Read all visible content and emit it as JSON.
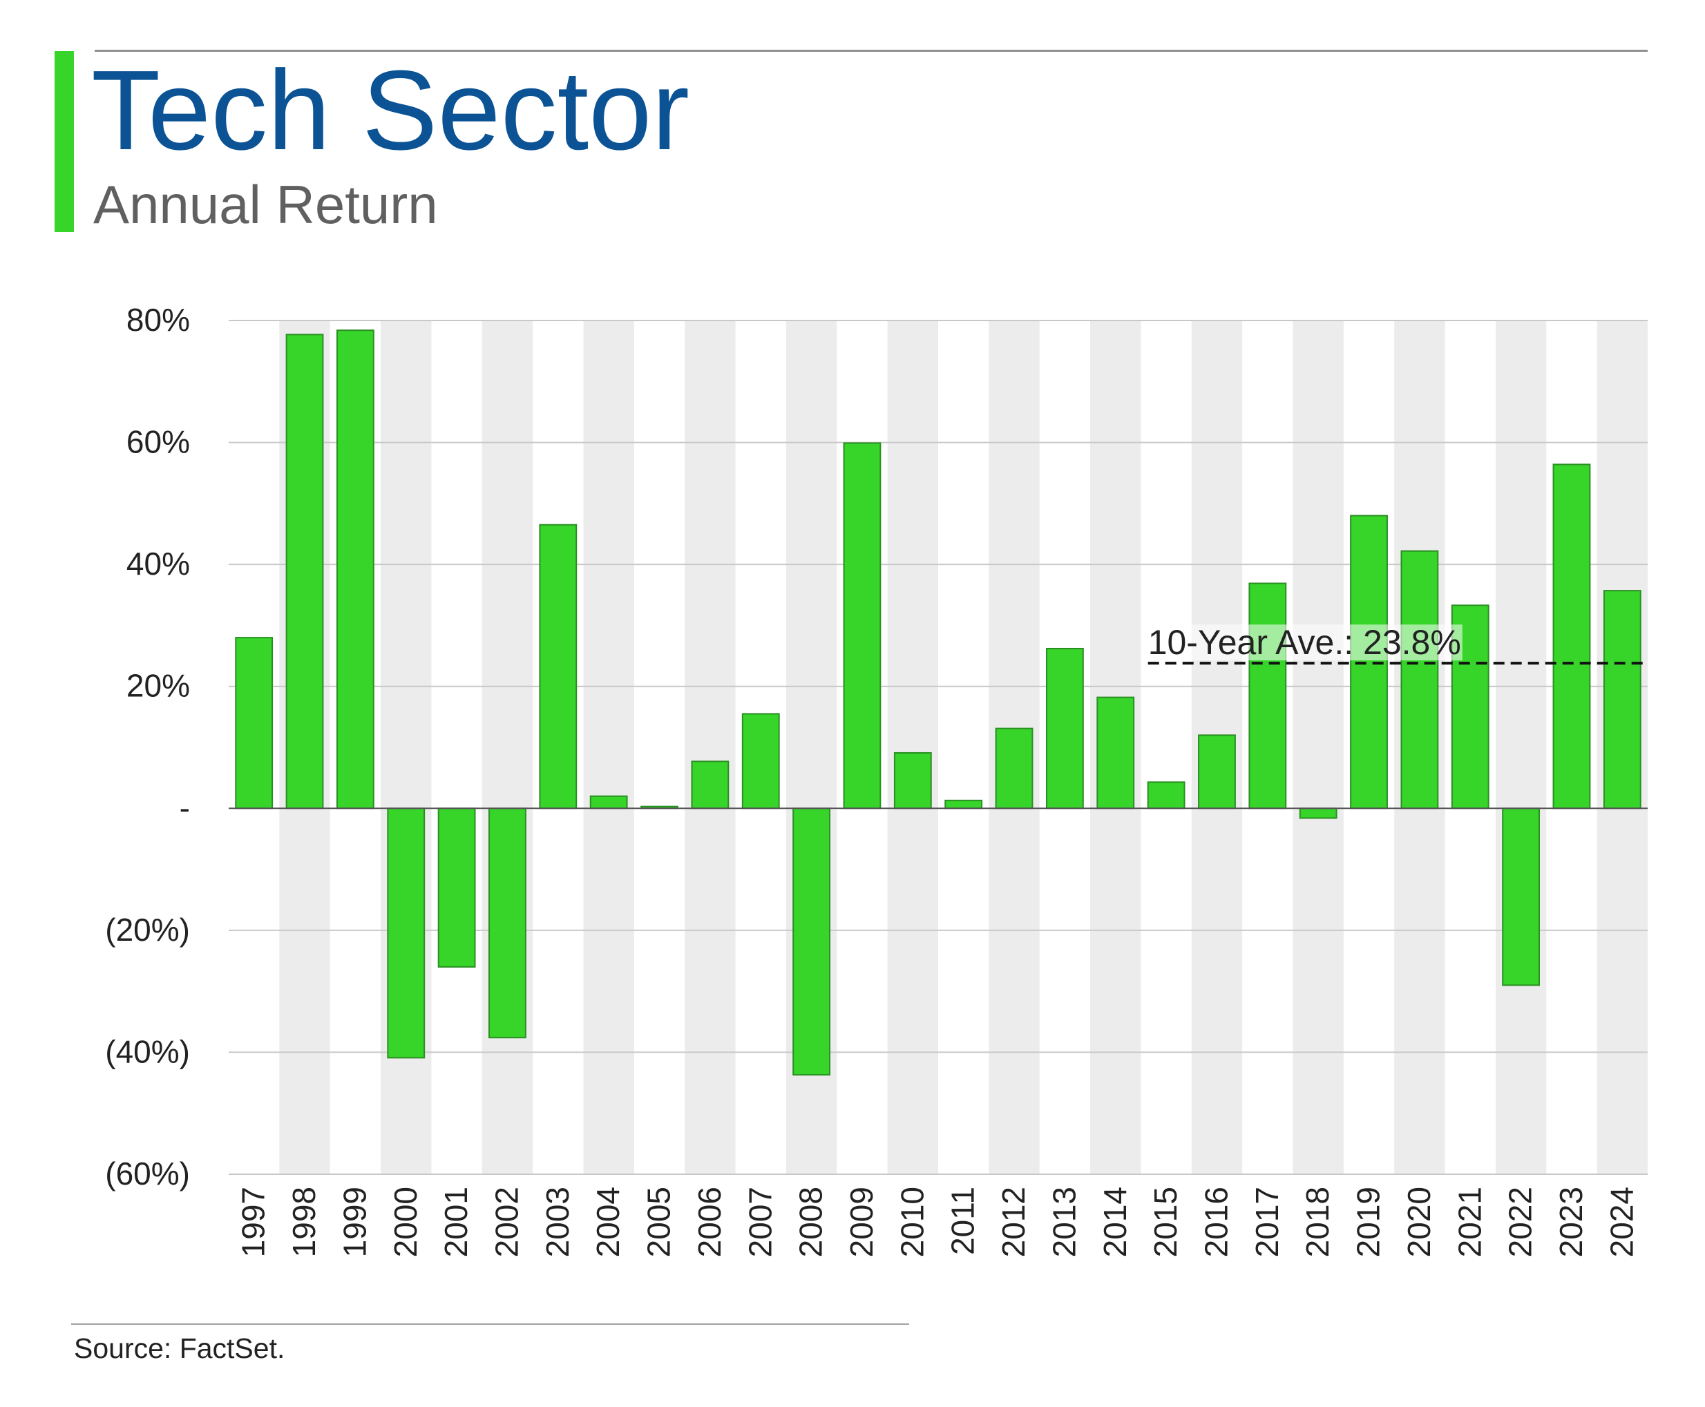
{
  "header": {
    "title": "Tech Sector",
    "subtitle": "Annual Return"
  },
  "footer": {
    "source": "Source: FactSet."
  },
  "colors": {
    "title": "#0b5394",
    "accent": "#37d42a",
    "bar_fill": "#37d42a",
    "bar_stroke": "#2a8f22",
    "band": "#ececec"
  },
  "chart_data": {
    "type": "bar",
    "categories": [
      "1997",
      "1998",
      "1999",
      "2000",
      "2001",
      "2002",
      "2003",
      "2004",
      "2005",
      "2006",
      "2007",
      "2008",
      "2009",
      "2010",
      "2011",
      "2012",
      "2013",
      "2014",
      "2015",
      "2016",
      "2017",
      "2018",
      "2019",
      "2020",
      "2021",
      "2022",
      "2023",
      "2024"
    ],
    "series": [
      {
        "values": [
          28.0,
          77.7,
          78.4,
          -40.9,
          -26.0,
          -37.6,
          46.5,
          2.0,
          0.3,
          7.7,
          15.5,
          -43.7,
          59.9,
          9.1,
          1.3,
          13.1,
          26.2,
          18.2,
          4.3,
          12.0,
          36.9,
          -1.6,
          48.0,
          42.2,
          33.3,
          -29.0,
          56.4,
          35.7
        ]
      }
    ],
    "ylim": [
      -60,
      80
    ],
    "yticks": [
      80,
      60,
      40,
      20,
      0,
      -20,
      -40,
      -60
    ],
    "ytick_labels": [
      "80%",
      "60%",
      "40%",
      "20%",
      "-",
      "(20%)",
      "(40%)",
      "(60%)"
    ],
    "grid": true,
    "alternating_bands": true,
    "reference_line": {
      "label": "10-Year Ave.: 23.8%",
      "value": 23.8,
      "start_category": "2015",
      "style": "dashed"
    }
  }
}
